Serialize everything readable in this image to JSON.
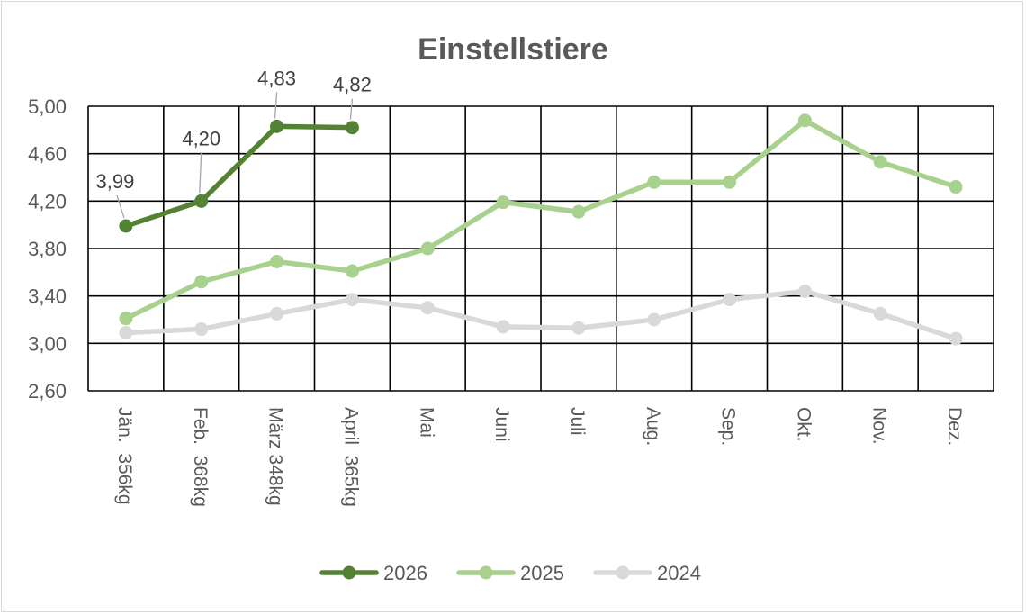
{
  "chart_data": {
    "type": "line",
    "title": "Einstellstiere",
    "xlabel": "",
    "ylabel": "",
    "ylim": [
      2.6,
      5.0
    ],
    "yticks": [
      "2,60",
      "3,00",
      "3,40",
      "3,80",
      "4,20",
      "4,60",
      "5,00"
    ],
    "ytick_values": [
      2.6,
      3.0,
      3.4,
      3.8,
      4.2,
      4.6,
      5.0
    ],
    "categories": [
      "Jän.  356kg",
      "Feb.  368kg",
      "März 348kg",
      "April  365kg",
      "Mai",
      "Juni",
      "Juli",
      "Aug.",
      "Sep.",
      "Okt.",
      "Nov.",
      "Dez."
    ],
    "grid": true,
    "legend": "bottom",
    "series": [
      {
        "name": "2026",
        "color": "#548235",
        "values": [
          3.99,
          4.2,
          4.83,
          4.82,
          null,
          null,
          null,
          null,
          null,
          null,
          null,
          null
        ],
        "labels": [
          "3,99",
          "4,20",
          "4,83",
          "4,82"
        ]
      },
      {
        "name": "2025",
        "color": "#a9d18e",
        "values": [
          3.21,
          3.52,
          3.69,
          3.61,
          3.8,
          4.19,
          4.11,
          4.36,
          4.36,
          4.88,
          4.53,
          4.32
        ]
      },
      {
        "name": "2024",
        "color": "#d9d9d9",
        "values": [
          3.09,
          3.12,
          3.25,
          3.37,
          3.3,
          3.14,
          3.13,
          3.2,
          3.37,
          3.44,
          3.25,
          3.04
        ]
      }
    ]
  }
}
